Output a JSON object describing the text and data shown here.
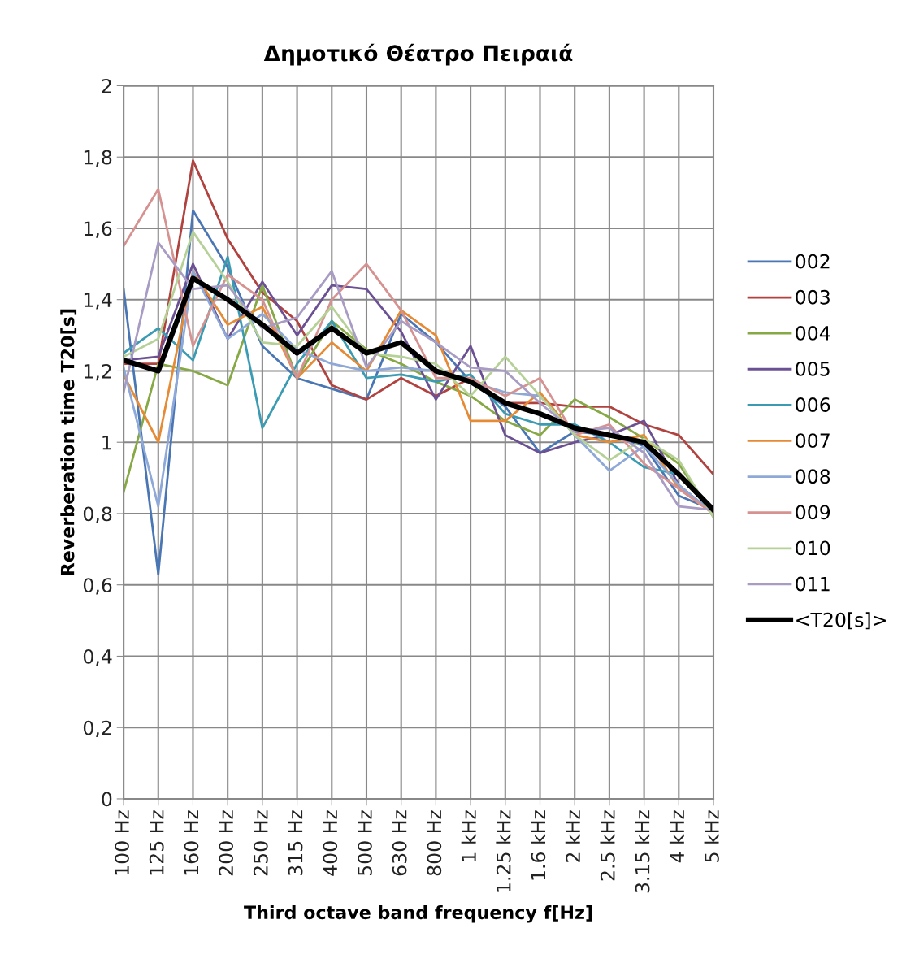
{
  "chart_data": {
    "type": "line",
    "title": "Δημοτικό Θέατρο Πειραιά",
    "xlabel": "Third octave band frequency f[Hz]",
    "ylabel": "Reverberation time T20[s]",
    "categories": [
      "100 Hz",
      "125 Hz",
      "160 Hz",
      "200 Hz",
      "250 Hz",
      "315 Hz",
      "400 Hz",
      "500 Hz",
      "630 Hz",
      "800 Hz",
      "1 kHz",
      "1.25 kHz",
      "1.6 kHz",
      "2 kHz",
      "2.5 kHz",
      "3.15 kHz",
      "4 kHz",
      "5 kHz"
    ],
    "ylim": [
      0,
      2
    ],
    "yticks": [
      0,
      {
        "value": 0.2,
        "label": "0,2"
      },
      {
        "value": 0.4,
        "label": "0,4"
      },
      {
        "value": 0.6,
        "label": "0,6"
      },
      {
        "value": 0.8,
        "label": "0,8"
      },
      1,
      {
        "value": 1.2,
        "label": "1,2"
      },
      {
        "value": 1.4,
        "label": "1,4"
      },
      {
        "value": 1.6,
        "label": "1,6"
      },
      {
        "value": 1.8,
        "label": "1,8"
      },
      2
    ],
    "grid": true,
    "legend": "right",
    "marker": "none",
    "line_style": "solid",
    "series": [
      {
        "name": "002",
        "color": "#4a76b4",
        "values": [
          1.43,
          0.63,
          1.65,
          1.49,
          1.27,
          1.18,
          1.15,
          1.12,
          1.36,
          1.28,
          1.17,
          1.1,
          0.97,
          1.03,
          1.02,
          0.99,
          0.85,
          0.81
        ]
      },
      {
        "name": "003",
        "color": "#b0433f",
        "values": [
          1.22,
          1.22,
          1.79,
          1.57,
          1.42,
          1.34,
          1.16,
          1.12,
          1.18,
          1.13,
          1.18,
          1.11,
          1.11,
          1.1,
          1.1,
          1.05,
          1.02,
          0.91
        ]
      },
      {
        "name": "004",
        "color": "#86a845",
        "values": [
          0.86,
          1.22,
          1.2,
          1.16,
          1.44,
          1.18,
          1.34,
          1.26,
          1.22,
          1.17,
          1.13,
          1.06,
          1.02,
          1.12,
          1.07,
          1.01,
          0.94,
          0.79
        ]
      },
      {
        "name": "005",
        "color": "#6b5094",
        "values": [
          1.23,
          1.24,
          1.5,
          1.29,
          1.45,
          1.3,
          1.44,
          1.43,
          1.31,
          1.12,
          1.27,
          1.02,
          0.97,
          1.0,
          1.02,
          1.06,
          0.88,
          0.8
        ]
      },
      {
        "name": "006",
        "color": "#3a9bb2",
        "values": [
          1.25,
          1.32,
          1.23,
          1.52,
          1.04,
          1.22,
          1.34,
          1.18,
          1.19,
          1.17,
          1.19,
          1.08,
          1.05,
          1.05,
          1.0,
          0.93,
          0.91,
          0.8
        ]
      },
      {
        "name": "007",
        "color": "#e58a35",
        "values": [
          1.19,
          1.0,
          1.48,
          1.33,
          1.38,
          1.18,
          1.28,
          1.2,
          1.37,
          1.3,
          1.06,
          1.06,
          1.14,
          1.02,
          1.0,
          1.02,
          0.87,
          0.8
        ]
      },
      {
        "name": "008",
        "color": "#8ea9d8",
        "values": [
          1.21,
          0.82,
          1.48,
          1.29,
          1.36,
          1.26,
          1.22,
          1.2,
          1.21,
          1.2,
          1.17,
          1.14,
          1.13,
          1.02,
          0.92,
          0.99,
          0.88,
          0.8
        ]
      },
      {
        "name": "009",
        "color": "#d69290",
        "values": [
          1.55,
          1.71,
          1.27,
          1.47,
          1.4,
          1.18,
          1.4,
          1.5,
          1.37,
          1.18,
          1.18,
          1.13,
          1.18,
          1.02,
          1.05,
          0.94,
          0.87,
          0.8
        ]
      },
      {
        "name": "010",
        "color": "#b6d197",
        "values": [
          1.24,
          1.29,
          1.59,
          1.45,
          1.28,
          1.27,
          1.38,
          1.25,
          1.24,
          1.22,
          1.13,
          1.24,
          1.13,
          1.02,
          0.95,
          1.01,
          0.95,
          0.79
        ]
      },
      {
        "name": "011",
        "color": "#a89bc4",
        "values": [
          1.14,
          1.56,
          1.43,
          1.44,
          1.32,
          1.35,
          1.48,
          1.21,
          1.34,
          1.28,
          1.21,
          1.2,
          1.11,
          1.03,
          1.04,
          0.97,
          0.82,
          0.81
        ]
      },
      {
        "name": "<T20[s]>",
        "color": "#000000",
        "values": [
          1.23,
          1.2,
          1.46,
          1.4,
          1.33,
          1.25,
          1.32,
          1.25,
          1.28,
          1.2,
          1.17,
          1.11,
          1.08,
          1.04,
          1.02,
          1.0,
          0.91,
          0.81
        ]
      }
    ]
  }
}
